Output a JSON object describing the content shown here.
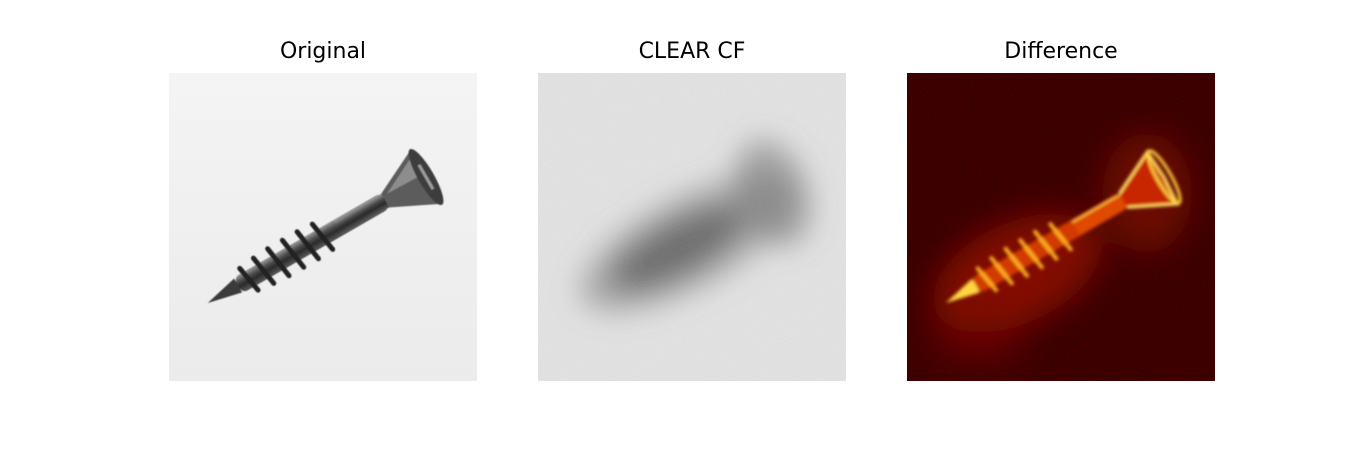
{
  "panels": [
    {
      "title": "Original",
      "image": "screw-photo-grayscale",
      "background": "#eeeeee"
    },
    {
      "title": "CLEAR CF",
      "image": "screw-counterfactual-blurred",
      "background": "#e6e6e6"
    },
    {
      "title": "Difference",
      "image": "difference-heatmap",
      "background": "#2a0000"
    }
  ],
  "colors": {
    "figure_background": "#ffffff",
    "heatmap_dark": "#2a0000",
    "heatmap_mid": "#cc2200",
    "heatmap_hot": "#ffdd55"
  }
}
